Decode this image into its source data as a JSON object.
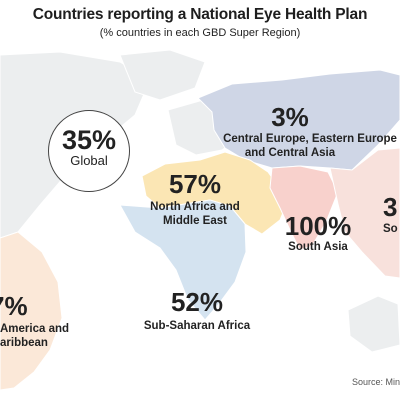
{
  "title": "Countries reporting a National Eye Health Plan",
  "subtitle": "(% countries in each GBD Super Region)",
  "source": "Source: Min",
  "colors": {
    "background_land": "#eceeef",
    "central_europe": "#cfd6e6",
    "north_africa": "#fbe6b4",
    "sub_saharan": "#d4e3f0",
    "south_asia": "#f8d1cc",
    "southeast_asia": "#f8e1dc",
    "latin_america": "#fbe8d8"
  },
  "chart_data": {
    "type": "map",
    "title": "Countries reporting a National Eye Health Plan",
    "subtitle": "(% countries in each GBD Super Region)",
    "global": {
      "value": 35,
      "label": "35%",
      "name": "Global"
    },
    "regions": [
      {
        "id": "central_europe",
        "name_lines": [
          "Central Europe, Eastern Europe",
          "and Central Asia"
        ],
        "value": 3,
        "label": "3%"
      },
      {
        "id": "north_africa",
        "name_lines": [
          "North Africa and",
          "Middle East"
        ],
        "value": 57,
        "label": "57%"
      },
      {
        "id": "south_asia",
        "name_lines": [
          "South Asia"
        ],
        "value": 100,
        "label": "100%"
      },
      {
        "id": "southeast_asia",
        "name_lines": [
          "So"
        ],
        "label": "3"
      },
      {
        "id": "sub_saharan",
        "name_lines": [
          "Sub-Saharan Africa"
        ],
        "value": 52,
        "label": "52%"
      },
      {
        "id": "latin_america",
        "name_lines": [
          "America and",
          "aribbean"
        ],
        "label": "7%"
      }
    ]
  }
}
